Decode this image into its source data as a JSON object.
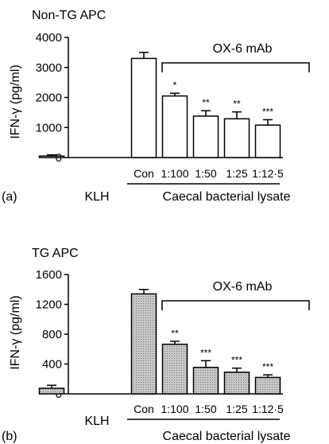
{
  "chart_data": [
    {
      "type": "bar",
      "panel_label": "(a)",
      "title": "Non-TG APC",
      "ylabel": "IFN-γ (pg/ml)",
      "ylim": [
        0,
        4000
      ],
      "yticks": [
        "0",
        "1000",
        "2000",
        "3000",
        "4000"
      ],
      "categories": [
        "KLH",
        "Con",
        "1:100",
        "1:50",
        "1:25",
        "1:12·5"
      ],
      "values": [
        50,
        3300,
        2050,
        1380,
        1290,
        1080
      ],
      "errors": [
        40,
        200,
        90,
        180,
        230,
        180
      ],
      "significance": [
        "",
        "",
        "*",
        "**",
        "**",
        "***"
      ],
      "bar_color": "#ffffff",
      "bracket_label": "OX-6 mAb",
      "group_label": "Caecal bacterial lysate",
      "standalone_label": "KLH"
    },
    {
      "type": "bar",
      "panel_label": "(b)",
      "title": "TG APC",
      "ylabel": "IFN-γ (pg/ml)",
      "ylim": [
        0,
        1600
      ],
      "yticks": [
        "0",
        "400",
        "800",
        "1200",
        "1600"
      ],
      "categories": [
        "KLH",
        "Con",
        "1:100",
        "1:50",
        "1:25",
        "1:12·5"
      ],
      "values": [
        75,
        1340,
        665,
        355,
        290,
        220
      ],
      "errors": [
        40,
        60,
        40,
        90,
        55,
        35
      ],
      "significance": [
        "",
        "",
        "**",
        "***",
        "***",
        "***"
      ],
      "bar_color": "#bdbdbd",
      "bracket_label": "OX-6 mAb",
      "group_label": "Caecal bacterial lysate",
      "standalone_label": "KLH"
    }
  ]
}
